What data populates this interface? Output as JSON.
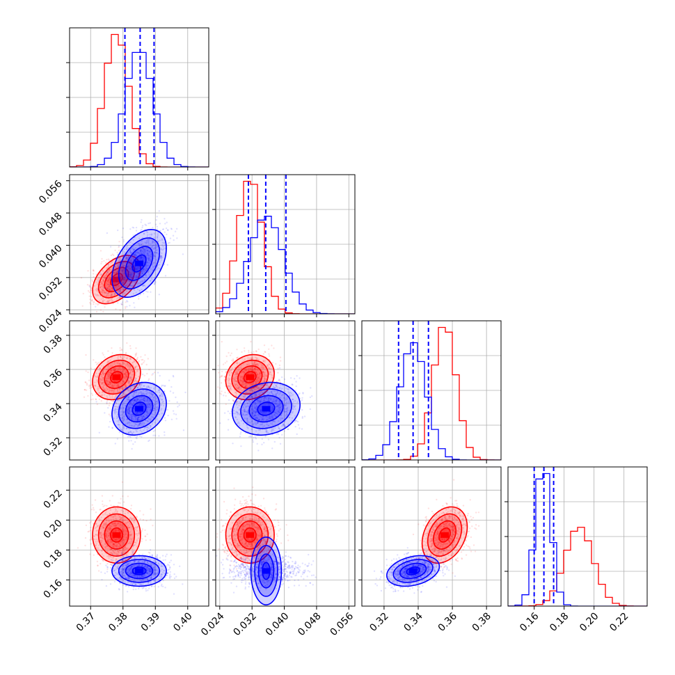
{
  "chart_data": {
    "type": "corner",
    "grid": true,
    "legend": "none",
    "colors": {
      "red": "#ff0000",
      "blue": "#0000ff"
    },
    "dims": [
      {
        "range": [
          0.3635,
          0.4065
        ],
        "ticks": [
          0.37,
          0.38,
          0.39,
          0.4
        ],
        "tick_labels": [
          "0.37",
          "0.38",
          "0.39",
          "0.40"
        ]
      },
      {
        "range": [
          0.023,
          0.0575
        ],
        "ticks": [
          0.024,
          0.032,
          0.04,
          0.048,
          0.056
        ],
        "tick_labels": [
          "0.024",
          "0.032",
          "0.040",
          "0.048",
          "0.056"
        ]
      },
      {
        "range": [
          0.307,
          0.3885
        ],
        "ticks": [
          0.32,
          0.34,
          0.36,
          0.38
        ],
        "tick_labels": [
          "0.32",
          "0.34",
          "0.36",
          "0.38"
        ]
      },
      {
        "range": [
          0.1425,
          0.2355
        ],
        "ticks": [
          0.16,
          0.18,
          0.2,
          0.22
        ],
        "tick_labels": [
          "0.16",
          "0.18",
          "0.20",
          "0.22"
        ]
      }
    ],
    "series": [
      {
        "color": "red",
        "mean": [
          0.378,
          0.0315,
          0.3555,
          0.19
        ],
        "std": [
          0.0037,
          0.003,
          0.0066,
          0.0094
        ],
        "corr": [
          [
            1,
            0.45,
            0.2,
            0
          ],
          [
            0.45,
            1,
            0.15,
            0
          ],
          [
            0.2,
            0.15,
            1,
            0.3
          ],
          [
            0,
            0,
            0.3,
            1
          ]
        ]
      },
      {
        "color": "blue",
        "mean": [
          0.385,
          0.0355,
          0.337,
          0.166
        ],
        "std": [
          0.0042,
          0.0042,
          0.0077,
          0.0051
        ],
        "corr": [
          [
            1,
            0.45,
            0.2,
            0
          ],
          [
            0.45,
            1,
            0.15,
            0
          ],
          [
            0.2,
            0.15,
            1,
            0.3
          ],
          [
            0,
            0,
            0.3,
            1
          ]
        ]
      }
    ],
    "quantile_lines": [
      [
        0.3806,
        0.3853,
        0.3896
      ],
      [
        0.0311,
        0.0354,
        0.0404
      ],
      [
        0.3285,
        0.337,
        0.346
      ],
      [
        0.16,
        0.1665,
        0.173
      ]
    ]
  }
}
